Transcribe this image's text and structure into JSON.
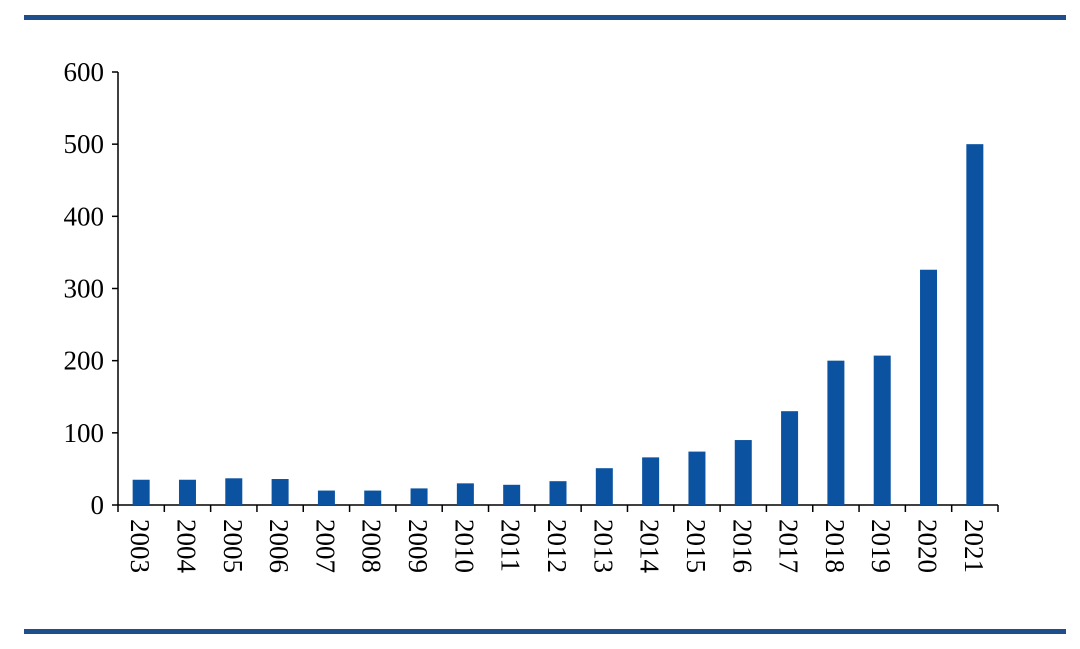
{
  "chart_data": {
    "type": "bar",
    "title": "",
    "xlabel": "",
    "ylabel": "",
    "categories": [
      "2003",
      "2004",
      "2005",
      "2006",
      "2007",
      "2008",
      "2009",
      "2010",
      "2011",
      "2012",
      "2013",
      "2014",
      "2015",
      "2016",
      "2017",
      "2018",
      "2019",
      "2020",
      "2021"
    ],
    "values": [
      35,
      35,
      37,
      36,
      20,
      20,
      23,
      30,
      28,
      33,
      51,
      66,
      74,
      90,
      130,
      200,
      207,
      326,
      500
    ],
    "ylim": [
      0,
      600
    ],
    "yticks": [
      "0",
      "100",
      "200",
      "300",
      "400",
      "500",
      "600"
    ],
    "grid": false,
    "legend": "none",
    "bar_color": "#0b52a0",
    "rule_color": "#1f4e8c"
  }
}
